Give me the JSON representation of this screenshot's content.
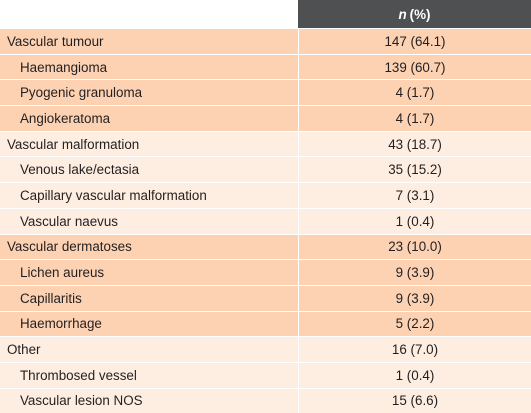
{
  "header": {
    "n_label": "n",
    "pct_label": "(%)"
  },
  "groups": [
    {
      "title": {
        "label": "Vascular tumour",
        "value": "147 (64.1)"
      },
      "items": [
        {
          "label": "Haemangioma",
          "value": "139 (60.7)"
        },
        {
          "label": "Pyogenic granuloma",
          "value": "4 (1.7)"
        },
        {
          "label": "Angiokeratoma",
          "value": "4 (1.7)"
        }
      ]
    },
    {
      "title": {
        "label": "Vascular malformation",
        "value": "43 (18.7)"
      },
      "items": [
        {
          "label": "Venous lake/ectasia",
          "value": "35 (15.2)"
        },
        {
          "label": "Capillary vascular malformation",
          "value": "7 (3.1)"
        },
        {
          "label": "Vascular naevus",
          "value": "1 (0.4)"
        }
      ]
    },
    {
      "title": {
        "label": "Vascular dermatoses",
        "value": "23 (10.0)"
      },
      "items": [
        {
          "label": "Lichen aureus",
          "value": "9 (3.9)"
        },
        {
          "label": "Capillaritis",
          "value": "9 (3.9)"
        },
        {
          "label": "Haemorrhage",
          "value": "5 (2.2)"
        }
      ]
    },
    {
      "title": {
        "label": "Other",
        "value": "16 (7.0)"
      },
      "items": [
        {
          "label": "Thrombosed vessel",
          "value": "1 (0.4)"
        },
        {
          "label": "Vascular lesion NOS",
          "value": "15 (6.6)"
        }
      ]
    }
  ]
}
